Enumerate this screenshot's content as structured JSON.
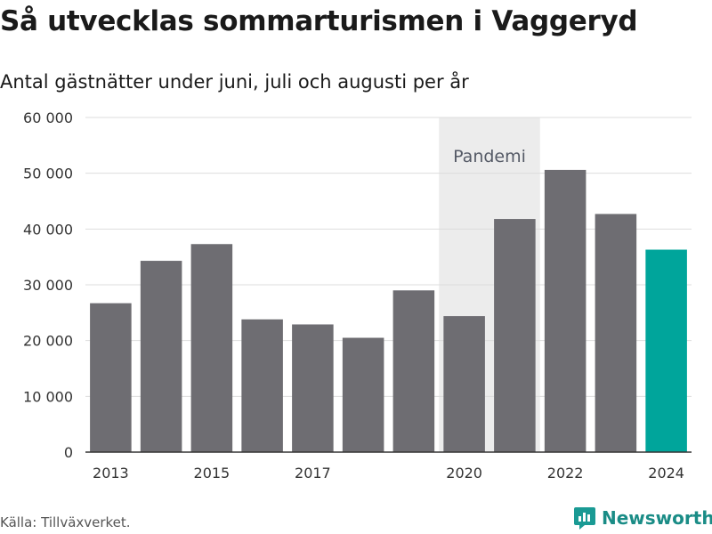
{
  "title": "Så utvecklas sommarturismen i Vaggeryd",
  "subtitle": "Antal gästnätter under juni, juli och augusti per år",
  "source": "Källa: Tillväxverket.",
  "brand": {
    "label": "Newsworthy",
    "icon": "newsworthy-logo-icon",
    "color": "#1a9a94"
  },
  "colors": {
    "bar": "#6e6d72",
    "highlight": "#00a59b",
    "band": "#ececec",
    "grid": "#dddddd"
  },
  "chart_data": {
    "type": "bar",
    "categories": [
      "2013",
      "2014",
      "2015",
      "2016",
      "2017",
      "2018",
      "2019",
      "2020",
      "2021",
      "2022",
      "2023",
      "2024"
    ],
    "values": [
      26700,
      34300,
      37300,
      23800,
      22900,
      20500,
      29000,
      24400,
      41800,
      50600,
      42700,
      36300
    ],
    "x_tick_labels": [
      "2013",
      "2015",
      "2017",
      "2020",
      "2022",
      "2024"
    ],
    "ylim": [
      0,
      60000
    ],
    "yticks": [
      0,
      10000,
      20000,
      30000,
      40000,
      50000,
      60000
    ],
    "ytick_labels": [
      "0",
      "10 000",
      "20 000",
      "30 000",
      "40 000",
      "50 000",
      "60 000"
    ],
    "highlight_category": "2024",
    "band": {
      "label": "Pandemi",
      "from": "2020",
      "to": "2021"
    },
    "grid": true,
    "legend": false
  }
}
